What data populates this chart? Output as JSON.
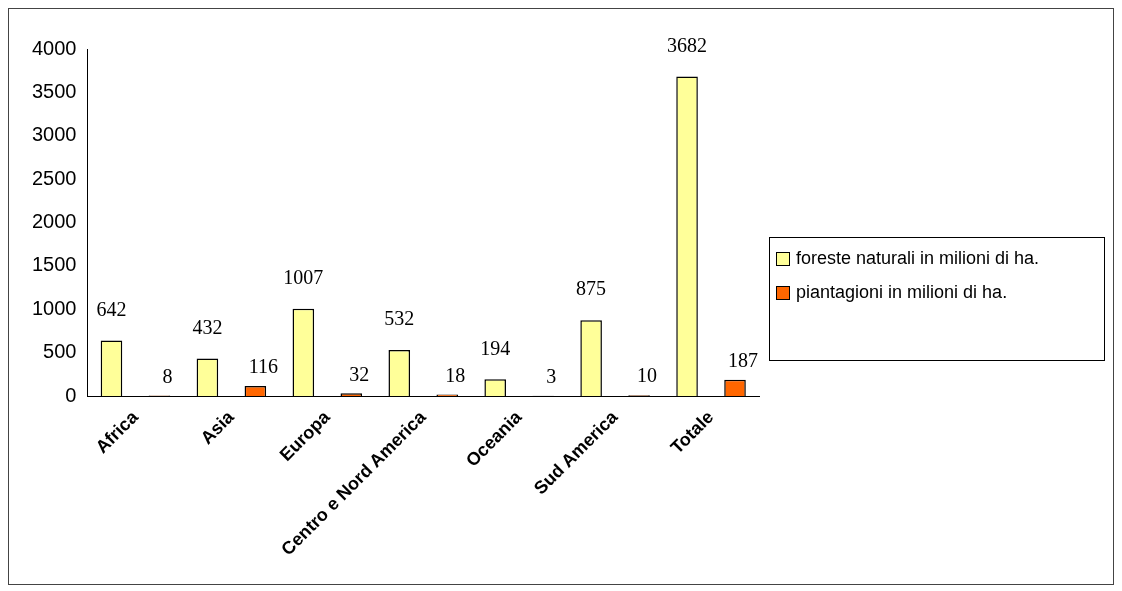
{
  "chart_data": {
    "type": "bar",
    "categories": [
      "Africa",
      "Asia",
      "Europa",
      "Centro e Nord America",
      "Oceania",
      "Sud America",
      "Totale"
    ],
    "series": [
      {
        "name": "foreste naturali in milioni di ha.",
        "color": "#ffff99",
        "values": [
          642,
          432,
          1007,
          532,
          194,
          875,
          3682
        ]
      },
      {
        "name": "piantagioni in milioni di ha.",
        "color": "#ff6600",
        "values": [
          8,
          116,
          32,
          18,
          3,
          10,
          187
        ]
      }
    ],
    "ylim": [
      0,
      4000
    ],
    "yticks": [
      0,
      500,
      1000,
      1500,
      2000,
      2500,
      3000,
      3500,
      4000
    ],
    "grid": false,
    "legend": "right",
    "data_labels": true
  }
}
